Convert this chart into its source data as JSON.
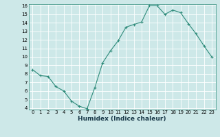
{
  "x": [
    0,
    1,
    2,
    3,
    4,
    5,
    6,
    7,
    8,
    9,
    10,
    11,
    12,
    13,
    14,
    15,
    16,
    17,
    18,
    19,
    20,
    21,
    22,
    23
  ],
  "y": [
    8.5,
    7.8,
    7.7,
    6.5,
    6.0,
    4.8,
    4.2,
    3.9,
    6.4,
    9.3,
    10.7,
    11.9,
    13.5,
    13.8,
    14.1,
    16.0,
    16.0,
    15.0,
    15.5,
    15.2,
    13.9,
    12.7,
    11.3,
    10.0
  ],
  "xlabel": "Humidex (Indice chaleur)",
  "ylim": [
    4,
    16
  ],
  "xlim": [
    -0.5,
    23.5
  ],
  "yticks": [
    4,
    5,
    6,
    7,
    8,
    9,
    10,
    11,
    12,
    13,
    14,
    15,
    16
  ],
  "xticks": [
    0,
    1,
    2,
    3,
    4,
    5,
    6,
    7,
    8,
    9,
    10,
    11,
    12,
    13,
    14,
    15,
    16,
    17,
    18,
    19,
    20,
    21,
    22,
    23
  ],
  "line_color": "#2e8b7a",
  "marker": "+",
  "bg_color": "#cde8e8",
  "grid_color": "#ffffff",
  "tick_fontsize": 5,
  "xlabel_fontsize": 6.5
}
